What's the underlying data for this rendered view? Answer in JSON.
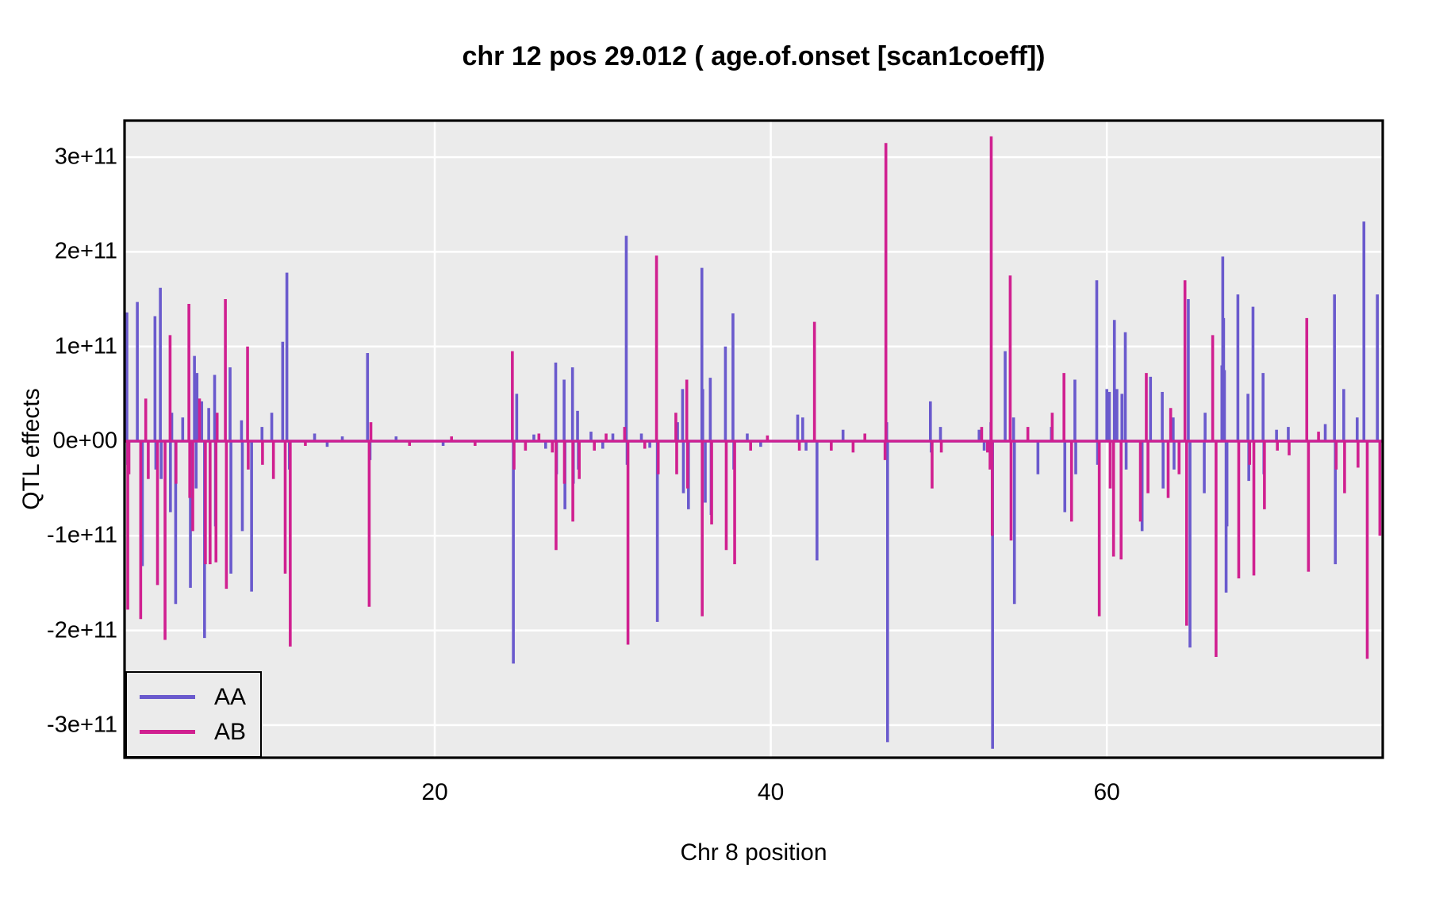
{
  "title": "chr 12 pos 29.012 ( age.of.onset  [scan1coeff])",
  "axes": {
    "x_label": "Chr 8 position",
    "y_label": "QTL effects",
    "x_tick_values": [
      20,
      40,
      60
    ],
    "x_tick_labels": [
      "20",
      "40",
      "60"
    ],
    "y_tick_values_e11": [
      3,
      2,
      1,
      0,
      -1,
      -2,
      -3
    ],
    "y_tick_labels": [
      "3e+11",
      "2e+11",
      "1e+11",
      "0e+00",
      "-1e+11",
      "-2e+11",
      "-3e+11"
    ]
  },
  "legend": {
    "entries": [
      {
        "label": "AA",
        "color": "#6A5ACD"
      },
      {
        "label": "AB",
        "color": "#D02090"
      }
    ]
  },
  "style": {
    "panel_bg": "#EBEBEB",
    "grid_color": "#FFFFFF",
    "border_color": "#000000",
    "aa_color": "#6A5ACD",
    "ab_color": "#D02090"
  },
  "chart_data": {
    "type": "line",
    "title": "chr 12 pos 29.012 ( age.of.onset  [scan1coeff])",
    "xlabel": "Chr 8 position",
    "ylabel": "QTL effects",
    "x_range": [
      1.5,
      76.5
    ],
    "ylim_e11": [
      -3.35,
      3.4
    ],
    "value_unit": "1e+11",
    "x_ticks": [
      20,
      40,
      60
    ],
    "y_ticks_e11": [
      3,
      2,
      1,
      0,
      -1,
      -2,
      -3
    ],
    "grid": "white major gridlines on gray panel",
    "legend_position": "bottom-left",
    "note": "spikes are [chromosome_position_cM, effect_in_units_of_1e11]; baseline is 0 elsewhere",
    "series": [
      {
        "name": "AA",
        "color": "#6A5ACD",
        "spikes": [
          [
            1.68,
            1.36
          ],
          [
            1.72,
            -0.25
          ],
          [
            2.3,
            1.47
          ],
          [
            2.6,
            -1.32
          ],
          [
            3.35,
            1.32
          ],
          [
            3.4,
            -0.3
          ],
          [
            3.67,
            1.62
          ],
          [
            3.72,
            -0.4
          ],
          [
            4.27,
            -0.75
          ],
          [
            4.35,
            0.3
          ],
          [
            4.58,
            -1.72
          ],
          [
            5.0,
            0.25
          ],
          [
            5.46,
            -1.55
          ],
          [
            5.7,
            0.9
          ],
          [
            5.75,
            0.55
          ],
          [
            5.8,
            -0.5
          ],
          [
            5.85,
            0.72
          ],
          [
            6.13,
            0.42
          ],
          [
            6.3,
            -2.08
          ],
          [
            6.55,
            0.35
          ],
          [
            6.9,
            0.7
          ],
          [
            6.95,
            -0.9
          ],
          [
            7.82,
            0.78
          ],
          [
            7.87,
            -1.4
          ],
          [
            8.5,
            0.22
          ],
          [
            8.55,
            -0.95
          ],
          [
            9.1,
            -1.59
          ],
          [
            9.72,
            0.15
          ],
          [
            10.3,
            0.3
          ],
          [
            10.95,
            1.05
          ],
          [
            11.2,
            1.78
          ],
          [
            11.35,
            -0.3
          ],
          [
            12.85,
            0.08
          ],
          [
            13.6,
            -0.06
          ],
          [
            14.5,
            0.05
          ],
          [
            16.0,
            0.93
          ],
          [
            16.15,
            -0.2
          ],
          [
            17.7,
            0.05
          ],
          [
            20.5,
            -0.05
          ],
          [
            24.68,
            -2.35
          ],
          [
            24.88,
            0.5
          ],
          [
            25.9,
            0.07
          ],
          [
            26.6,
            -0.08
          ],
          [
            27.2,
            0.83
          ],
          [
            27.25,
            -0.35
          ],
          [
            27.7,
            0.65
          ],
          [
            27.75,
            -0.72
          ],
          [
            28.2,
            0.78
          ],
          [
            28.25,
            -0.45
          ],
          [
            28.5,
            0.32
          ],
          [
            28.55,
            -0.3
          ],
          [
            29.3,
            0.1
          ],
          [
            30.0,
            -0.08
          ],
          [
            30.6,
            0.08
          ],
          [
            31.4,
            2.17
          ],
          [
            31.45,
            -0.25
          ],
          [
            32.3,
            0.08
          ],
          [
            32.8,
            -0.07
          ],
          [
            33.25,
            -1.91
          ],
          [
            34.45,
            0.2
          ],
          [
            34.75,
            0.55
          ],
          [
            34.8,
            -0.55
          ],
          [
            35.1,
            -0.72
          ],
          [
            35.9,
            1.83
          ],
          [
            35.95,
            0.55
          ],
          [
            36.1,
            -0.65
          ],
          [
            36.4,
            0.67
          ],
          [
            36.45,
            -0.78
          ],
          [
            37.3,
            1.0
          ],
          [
            37.75,
            1.35
          ],
          [
            37.8,
            -0.3
          ],
          [
            38.6,
            0.08
          ],
          [
            39.4,
            -0.06
          ],
          [
            41.6,
            0.28
          ],
          [
            41.9,
            0.25
          ],
          [
            42.1,
            -0.1
          ],
          [
            42.75,
            -1.26
          ],
          [
            44.3,
            0.12
          ],
          [
            46.9,
            0.2
          ],
          [
            46.95,
            -3.18
          ],
          [
            49.5,
            0.42
          ],
          [
            49.55,
            -0.12
          ],
          [
            50.1,
            0.15
          ],
          [
            52.4,
            0.12
          ],
          [
            52.7,
            -0.1
          ],
          [
            53.1,
            0.2
          ],
          [
            53.2,
            -3.25
          ],
          [
            53.95,
            0.95
          ],
          [
            54.45,
            0.25
          ],
          [
            54.5,
            -1.72
          ],
          [
            55.9,
            -0.35
          ],
          [
            56.7,
            0.15
          ],
          [
            57.5,
            -0.75
          ],
          [
            58.1,
            0.65
          ],
          [
            58.15,
            -0.35
          ],
          [
            59.4,
            1.7
          ],
          [
            59.45,
            -0.25
          ],
          [
            60.0,
            0.55
          ],
          [
            60.15,
            0.52
          ],
          [
            60.45,
            1.28
          ],
          [
            60.6,
            0.55
          ],
          [
            60.9,
            0.5
          ],
          [
            61.1,
            1.15
          ],
          [
            61.15,
            -0.3
          ],
          [
            62.1,
            -0.95
          ],
          [
            62.6,
            0.68
          ],
          [
            63.3,
            0.52
          ],
          [
            63.35,
            -0.5
          ],
          [
            63.95,
            0.25
          ],
          [
            64.0,
            -0.3
          ],
          [
            64.85,
            1.5
          ],
          [
            64.95,
            -2.18
          ],
          [
            65.8,
            -0.55
          ],
          [
            65.85,
            0.3
          ],
          [
            66.85,
            0.8
          ],
          [
            66.9,
            1.95
          ],
          [
            66.95,
            1.3
          ],
          [
            67.0,
            0.75
          ],
          [
            67.1,
            -1.6
          ],
          [
            67.15,
            -0.9
          ],
          [
            67.8,
            1.55
          ],
          [
            68.4,
            0.5
          ],
          [
            68.45,
            -0.42
          ],
          [
            68.7,
            1.42
          ],
          [
            69.3,
            0.72
          ],
          [
            69.35,
            -0.35
          ],
          [
            70.1,
            0.12
          ],
          [
            70.8,
            0.15
          ],
          [
            73.0,
            0.18
          ],
          [
            73.55,
            1.55
          ],
          [
            73.6,
            -1.3
          ],
          [
            74.1,
            0.55
          ],
          [
            74.9,
            0.25
          ],
          [
            75.3,
            2.32
          ],
          [
            76.1,
            1.55
          ],
          [
            76.45,
            0.9
          ]
        ]
      },
      {
        "name": "AB",
        "color": "#D02090",
        "spikes": [
          [
            1.73,
            -1.78
          ],
          [
            1.8,
            -0.35
          ],
          [
            2.5,
            -1.88
          ],
          [
            2.8,
            0.45
          ],
          [
            2.95,
            -0.4
          ],
          [
            3.5,
            -1.52
          ],
          [
            3.95,
            -2.1
          ],
          [
            4.25,
            1.12
          ],
          [
            4.6,
            -0.45
          ],
          [
            5.37,
            1.45
          ],
          [
            5.42,
            -0.6
          ],
          [
            5.6,
            -0.95
          ],
          [
            6.0,
            0.45
          ],
          [
            6.35,
            -1.3
          ],
          [
            6.63,
            -1.3
          ],
          [
            6.98,
            -1.28
          ],
          [
            7.05,
            0.3
          ],
          [
            7.54,
            1.5
          ],
          [
            7.6,
            -1.56
          ],
          [
            8.86,
            1.0
          ],
          [
            8.9,
            -0.3
          ],
          [
            9.75,
            -0.25
          ],
          [
            10.4,
            -0.4
          ],
          [
            11.1,
            -1.4
          ],
          [
            11.4,
            -2.17
          ],
          [
            12.3,
            -0.05
          ],
          [
            16.1,
            -1.75
          ],
          [
            16.2,
            0.2
          ],
          [
            18.5,
            -0.05
          ],
          [
            21.0,
            0.05
          ],
          [
            22.4,
            -0.05
          ],
          [
            24.62,
            0.95
          ],
          [
            24.72,
            -0.3
          ],
          [
            25.4,
            -0.1
          ],
          [
            26.2,
            0.08
          ],
          [
            27.0,
            -0.12
          ],
          [
            27.22,
            -1.15
          ],
          [
            27.72,
            -0.45
          ],
          [
            28.22,
            -0.85
          ],
          [
            28.6,
            -0.4
          ],
          [
            29.5,
            -0.1
          ],
          [
            30.2,
            0.08
          ],
          [
            31.3,
            0.15
          ],
          [
            31.5,
            -2.15
          ],
          [
            32.5,
            -0.08
          ],
          [
            33.2,
            1.96
          ],
          [
            33.3,
            -0.35
          ],
          [
            34.35,
            0.3
          ],
          [
            34.4,
            -0.35
          ],
          [
            35.0,
            0.65
          ],
          [
            35.05,
            -0.5
          ],
          [
            35.92,
            -1.85
          ],
          [
            36.48,
            -0.88
          ],
          [
            37.35,
            -1.15
          ],
          [
            37.85,
            -1.3
          ],
          [
            38.8,
            -0.1
          ],
          [
            39.8,
            0.06
          ],
          [
            41.7,
            -0.1
          ],
          [
            42.6,
            1.26
          ],
          [
            43.6,
            -0.1
          ],
          [
            44.9,
            -0.12
          ],
          [
            45.6,
            0.08
          ],
          [
            46.8,
            -0.2
          ],
          [
            46.85,
            3.15
          ],
          [
            49.6,
            -0.5
          ],
          [
            50.15,
            -0.12
          ],
          [
            52.55,
            0.15
          ],
          [
            52.9,
            -0.12
          ],
          [
            53.05,
            -0.3
          ],
          [
            53.12,
            3.22
          ],
          [
            53.18,
            -1.0
          ],
          [
            54.25,
            1.75
          ],
          [
            54.3,
            -1.05
          ],
          [
            55.3,
            0.15
          ],
          [
            56.75,
            0.3
          ],
          [
            57.45,
            0.72
          ],
          [
            57.9,
            -0.85
          ],
          [
            59.55,
            -1.85
          ],
          [
            60.2,
            -0.5
          ],
          [
            60.4,
            -1.22
          ],
          [
            60.85,
            -1.25
          ],
          [
            62.0,
            -0.85
          ],
          [
            62.35,
            0.72
          ],
          [
            62.45,
            -0.55
          ],
          [
            63.65,
            -0.6
          ],
          [
            63.8,
            0.35
          ],
          [
            64.3,
            -0.35
          ],
          [
            64.65,
            1.7
          ],
          [
            64.75,
            -1.95
          ],
          [
            66.3,
            1.12
          ],
          [
            66.5,
            -2.28
          ],
          [
            67.85,
            -1.45
          ],
          [
            68.5,
            -0.25
          ],
          [
            68.75,
            -1.42
          ],
          [
            69.38,
            -0.72
          ],
          [
            70.15,
            -0.1
          ],
          [
            70.85,
            -0.15
          ],
          [
            71.9,
            1.3
          ],
          [
            72.0,
            -1.38
          ],
          [
            72.6,
            0.1
          ],
          [
            73.65,
            -0.3
          ],
          [
            74.15,
            -0.55
          ],
          [
            74.95,
            -0.28
          ],
          [
            75.5,
            -2.3
          ],
          [
            76.25,
            -1.0
          ],
          [
            76.5,
            -0.9
          ]
        ]
      }
    ]
  }
}
